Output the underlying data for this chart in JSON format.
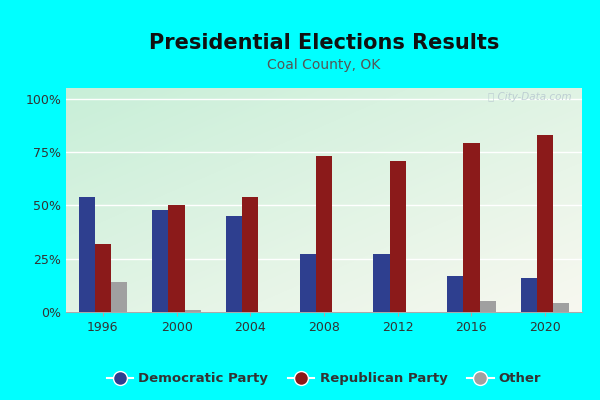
{
  "title": "Presidential Elections Results",
  "subtitle": "Coal County, OK",
  "years": [
    1996,
    2000,
    2004,
    2008,
    2012,
    2016,
    2020
  ],
  "democratic": [
    54,
    48,
    45,
    27,
    27,
    17,
    16
  ],
  "republican": [
    32,
    50,
    54,
    73,
    71,
    79,
    83
  ],
  "other": [
    14,
    1,
    0,
    0,
    0,
    5,
    4
  ],
  "dem_color": "#2e3f8f",
  "rep_color": "#8b1a1a",
  "other_color": "#a0a0a0",
  "bg_color": "#00ffff",
  "plot_bg_tl": "#c8efd8",
  "plot_bg_br": "#f8f8f0",
  "yticks": [
    0,
    25,
    50,
    75,
    100
  ],
  "ytick_labels": [
    "0%",
    "25%",
    "50%",
    "75%",
    "100%"
  ],
  "ylim": [
    0,
    105
  ],
  "bar_width": 0.22,
  "title_fontsize": 15,
  "subtitle_fontsize": 10,
  "watermark": "ⓘ City-Data.com"
}
